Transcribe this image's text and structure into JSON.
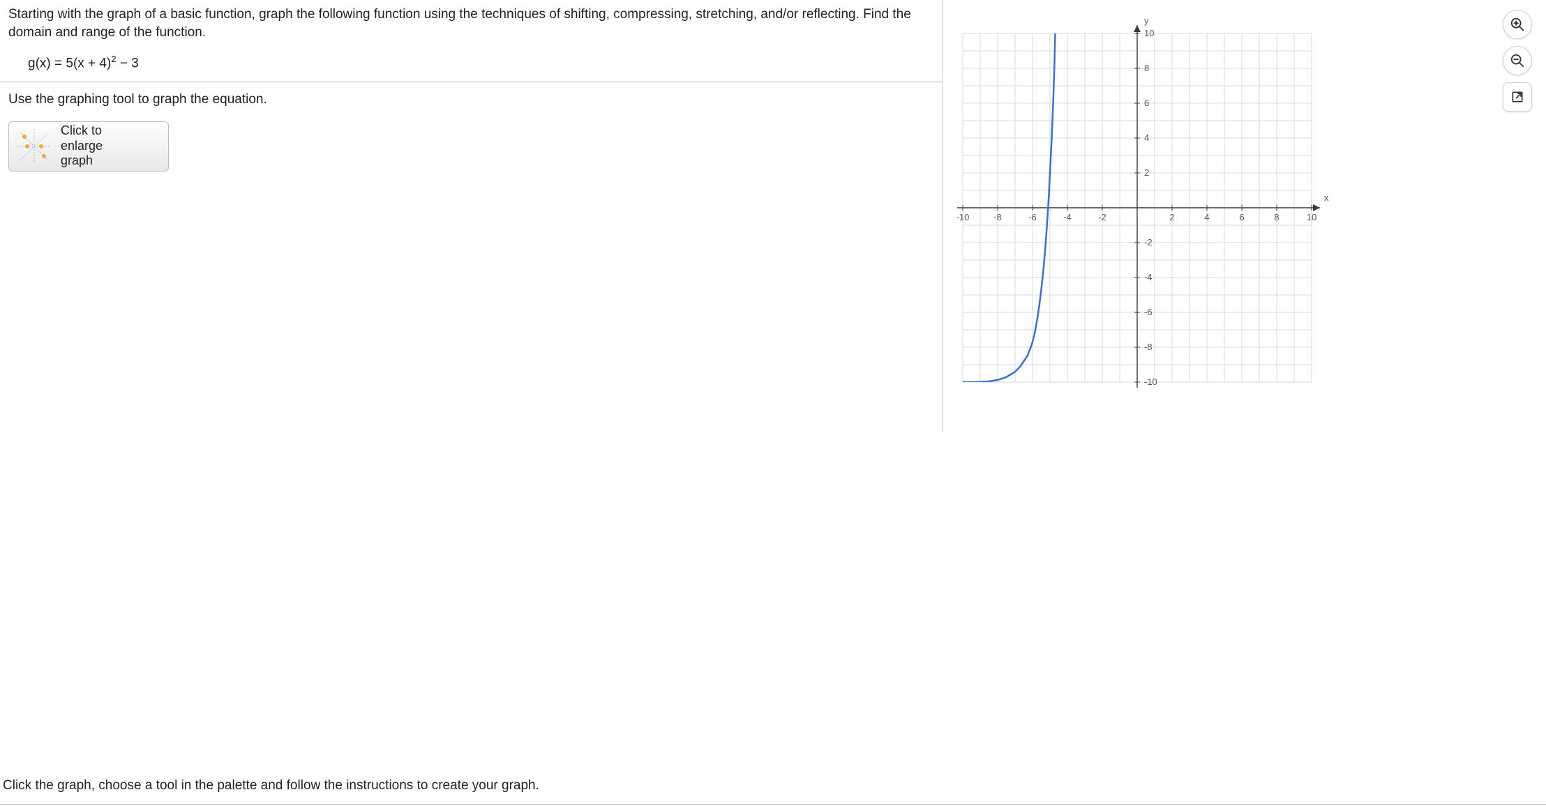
{
  "problem": {
    "intro": "Starting with the graph of a basic function, graph the following function using the techniques of shifting, compressing, stretching, and/or reflecting. Find the domain and range of the function.",
    "equation_prefix": "g(x) = 5(x + 4)",
    "equation_exponent": "2",
    "equation_suffix": " − 3",
    "instruction": "Use the graphing tool to graph the equation.",
    "enlarge_line1": "Click to",
    "enlarge_line2": "enlarge",
    "enlarge_line3": "graph"
  },
  "bottom_text": "Click the graph, choose a tool in the palette and follow the instructions to create your graph.",
  "chart": {
    "type": "line",
    "xlim": [
      -10,
      10
    ],
    "ylim": [
      -10,
      10
    ],
    "tick_step": 2,
    "tick_labels_x": [
      "-10",
      "-8",
      "-6",
      "-4",
      "-2",
      "2",
      "4",
      "6",
      "8",
      "10"
    ],
    "tick_labels_y": [
      "10",
      "8",
      "6",
      "4",
      "2",
      "-2",
      "-4",
      "-6",
      "-8",
      "-10"
    ],
    "x_axis_label": "x",
    "y_axis_label": "y",
    "grid_color": "#d9d9d9",
    "axis_color": "#3a3a3a",
    "background_color": "#ffffff",
    "curve_color": "#3b6fd8",
    "curve_width": 2.5,
    "label_fontsize": 13,
    "label_color": "#555555",
    "curve_points": [
      [
        -10,
        -10
      ],
      [
        -9.5,
        -10
      ],
      [
        -9,
        -9.99
      ],
      [
        -8.5,
        -9.96
      ],
      [
        -8,
        -9.88
      ],
      [
        -7.5,
        -9.71
      ],
      [
        -7,
        -9.41
      ],
      [
        -6.7,
        -9.1
      ],
      [
        -6.5,
        -8.8
      ],
      [
        -6.3,
        -8.5
      ],
      [
        -6.1,
        -8.0
      ],
      [
        -6.0,
        -7.7
      ],
      [
        -5.9,
        -7.3
      ],
      [
        -5.8,
        -6.8
      ],
      [
        -5.7,
        -6.2
      ],
      [
        -5.6,
        -5.5
      ],
      [
        -5.5,
        -4.7
      ],
      [
        -5.4,
        -3.8
      ],
      [
        -5.3,
        -2.7
      ],
      [
        -5.2,
        -1.4
      ],
      [
        -5.1,
        0.1
      ],
      [
        -5.05,
        1.0
      ],
      [
        -5.0,
        2.0
      ],
      [
        -4.95,
        3.0
      ],
      [
        -4.9,
        4.0
      ],
      [
        -4.85,
        5.2
      ],
      [
        -4.8,
        6.5
      ],
      [
        -4.75,
        8.0
      ],
      [
        -4.7,
        10.0
      ]
    ]
  },
  "toolbar": {
    "zoom_in": "zoom-in",
    "zoom_out": "zoom-out",
    "popout": "popout"
  }
}
